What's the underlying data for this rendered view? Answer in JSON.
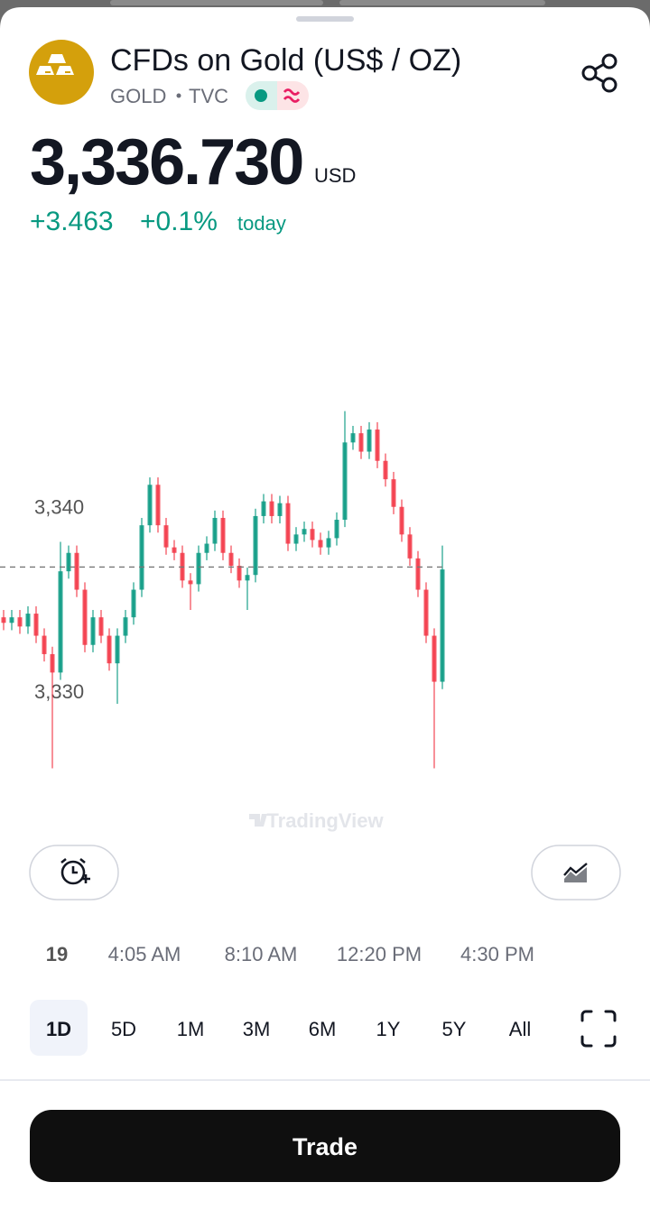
{
  "header": {
    "title": "CFDs on Gold (US$ / OZ)",
    "symbol": "GOLD",
    "exchange": "TVC"
  },
  "price": {
    "value": 3336.73,
    "label": "3,336.730"
  },
  "currency": "USD",
  "change": "+3.463",
  "change_percent": "+0.1%",
  "change_period": "today",
  "chart_data": {
    "type": "candlestick",
    "up_color": "#089981",
    "down_color": "#f23645",
    "watermark": "TradingView",
    "ylim": [
      3324.4,
      3354.3
    ],
    "yticks": [
      {
        "value": 3340,
        "label": "3,340"
      },
      {
        "value": 3330,
        "label": "3,330"
      }
    ],
    "x_labels": [
      "19",
      "4:05 AM",
      "8:10 AM",
      "12:20 PM",
      "4:30 PM"
    ],
    "open": [
      3334.0,
      3333.7,
      3334.0,
      3333.5,
      3334.2,
      3333.0,
      3332.0,
      3331.0,
      3336.5,
      3337.5,
      3335.5,
      3332.5,
      3334.0,
      3333.0,
      3331.5,
      3333.0,
      3334.0,
      3335.5,
      3339.0,
      3341.2,
      3339.0,
      3337.8,
      3337.5,
      3336.0,
      3335.8,
      3337.5,
      3338.0,
      3339.4,
      3337.5,
      3336.8,
      3336.0,
      3336.3,
      3339.5,
      3340.3,
      3339.5,
      3340.2,
      3338.0,
      3338.5,
      3338.8,
      3338.2,
      3337.8,
      3338.3,
      3339.3,
      3343.5,
      3344.0,
      3343.0,
      3344.2,
      3342.5,
      3341.5,
      3340.0,
      3338.5,
      3337.2,
      3335.5,
      3333.0,
      3330.5
    ],
    "high": [
      3334.4,
      3334.4,
      3334.4,
      3334.6,
      3334.6,
      3333.4,
      3332.4,
      3338.1,
      3337.9,
      3337.9,
      3335.9,
      3334.4,
      3334.4,
      3333.4,
      3333.4,
      3334.4,
      3335.9,
      3339.4,
      3341.6,
      3341.6,
      3339.4,
      3338.2,
      3337.9,
      3336.4,
      3337.9,
      3338.4,
      3339.8,
      3339.8,
      3337.9,
      3337.2,
      3336.7,
      3339.9,
      3340.7,
      3340.7,
      3340.6,
      3340.6,
      3338.9,
      3339.2,
      3339.2,
      3338.6,
      3338.7,
      3339.7,
      3345.2,
      3344.4,
      3344.4,
      3344.6,
      3344.6,
      3342.9,
      3341.9,
      3340.4,
      3338.9,
      3337.6,
      3335.9,
      3333.4,
      3337.9
    ],
    "low": [
      3333.3,
      3333.3,
      3333.1,
      3333.1,
      3332.6,
      3331.6,
      3325.8,
      3330.6,
      3336.1,
      3335.1,
      3332.1,
      3332.1,
      3332.6,
      3331.1,
      3329.3,
      3332.6,
      3333.6,
      3335.1,
      3338.6,
      3338.6,
      3337.4,
      3337.1,
      3335.6,
      3334.4,
      3335.4,
      3337.1,
      3337.6,
      3337.1,
      3336.4,
      3335.6,
      3334.4,
      3335.9,
      3339.1,
      3339.1,
      3339.1,
      3337.6,
      3337.6,
      3338.1,
      3337.8,
      3337.4,
      3337.4,
      3337.9,
      3338.9,
      3343.1,
      3342.6,
      3342.6,
      3342.1,
      3341.1,
      3339.6,
      3338.1,
      3336.8,
      3335.1,
      3332.6,
      3325.8,
      3330.1
    ],
    "close": [
      3333.7,
      3334.0,
      3333.5,
      3334.2,
      3333.0,
      3332.0,
      3331.0,
      3336.5,
      3337.5,
      3335.5,
      3332.5,
      3334.0,
      3333.0,
      3331.5,
      3333.0,
      3334.0,
      3335.5,
      3339.0,
      3341.2,
      3339.0,
      3337.8,
      3337.5,
      3336.0,
      3335.8,
      3337.5,
      3338.0,
      3339.4,
      3337.5,
      3336.8,
      3336.0,
      3336.3,
      3339.5,
      3340.3,
      3339.5,
      3340.2,
      3338.0,
      3338.5,
      3338.8,
      3338.2,
      3337.8,
      3338.3,
      3339.3,
      3343.5,
      3344.0,
      3343.0,
      3344.2,
      3342.5,
      3341.5,
      3340.0,
      3338.5,
      3337.2,
      3335.5,
      3333.0,
      3330.5,
      3336.6
    ]
  },
  "timeframes": [
    "1D",
    "5D",
    "1M",
    "3M",
    "6M",
    "1Y",
    "5Y",
    "All"
  ],
  "selected_timeframe": 0,
  "trade_button": "Trade"
}
